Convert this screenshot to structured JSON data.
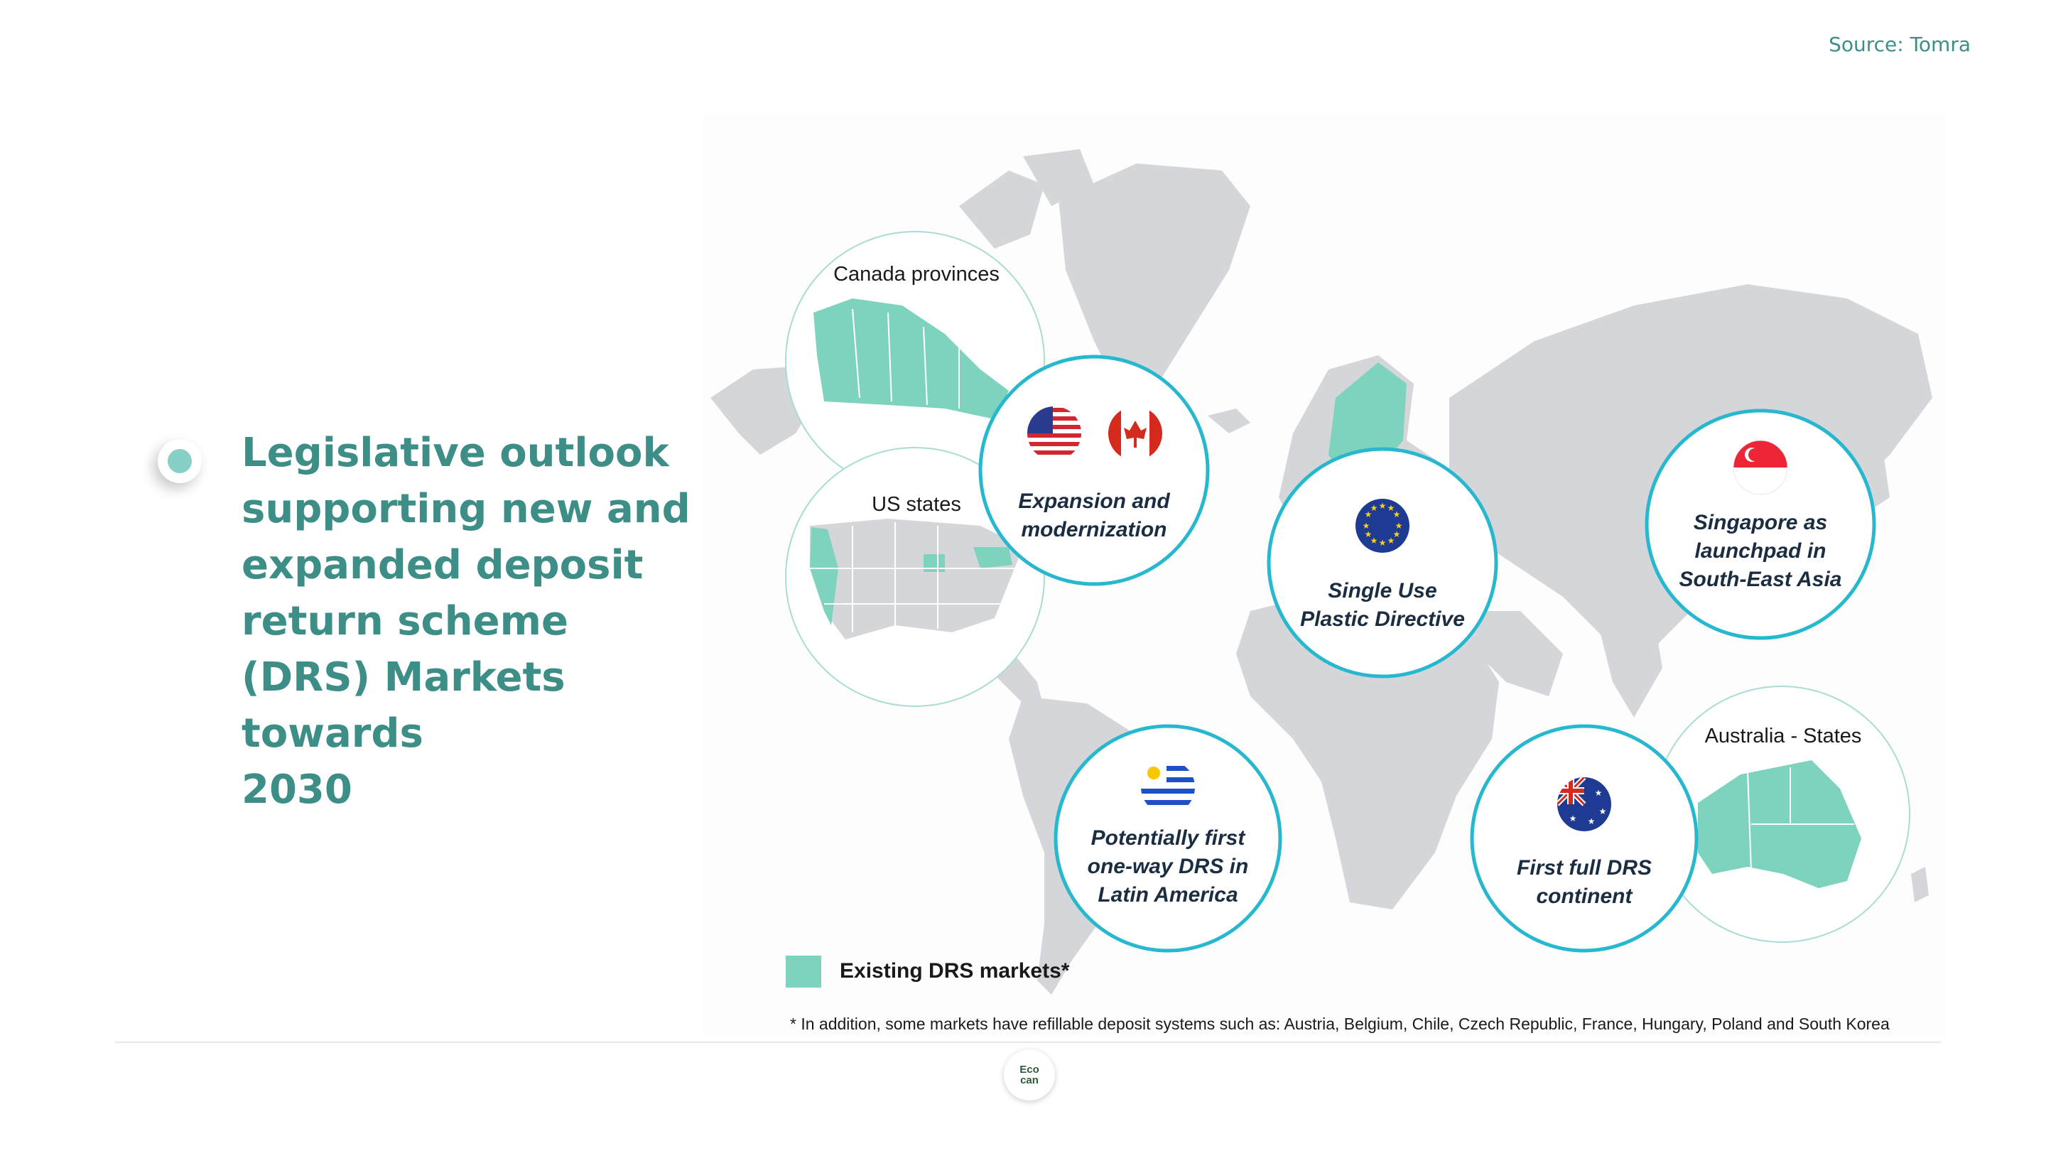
{
  "source": "Source: Tomra",
  "heading": {
    "lines": [
      "Legislative outlook",
      "supporting new and",
      "expanded deposit",
      "return scheme",
      "(DRS) Markets towards",
      "2030"
    ]
  },
  "map": {
    "inset_canada": "Canada provinces",
    "inset_us": "US states",
    "inset_australia": "Australia - States",
    "callouts": {
      "north_america": "Expansion and\nmodernization",
      "europe": "Single Use\nPlastic Directive",
      "singapore": "Singapore as\nlaunchpad in\nSouth-East Asia",
      "latin_america": "Potentially first\none-way DRS in\nLatin America",
      "australia": "First full DRS\ncontinent"
    },
    "flags": [
      "us-flag-icon",
      "canada-flag-icon",
      "eu-flag-icon",
      "singapore-flag-icon",
      "uruguay-flag-icon",
      "australia-flag-icon"
    ],
    "colors": {
      "land": "#d4d6d9",
      "drs_market": "#7dd3bd",
      "callout_ring": "#27b8cf",
      "inset_ring": "#a9dcd3"
    }
  },
  "legend": {
    "label": "Existing DRS markets*"
  },
  "footnote": "* In addition, some markets have refillable deposit systems such as: Austria, Belgium, Chile, Czech Republic, France, Hungary, Poland and South Korea",
  "logo": {
    "line1": "Eco",
    "line2": "can"
  }
}
